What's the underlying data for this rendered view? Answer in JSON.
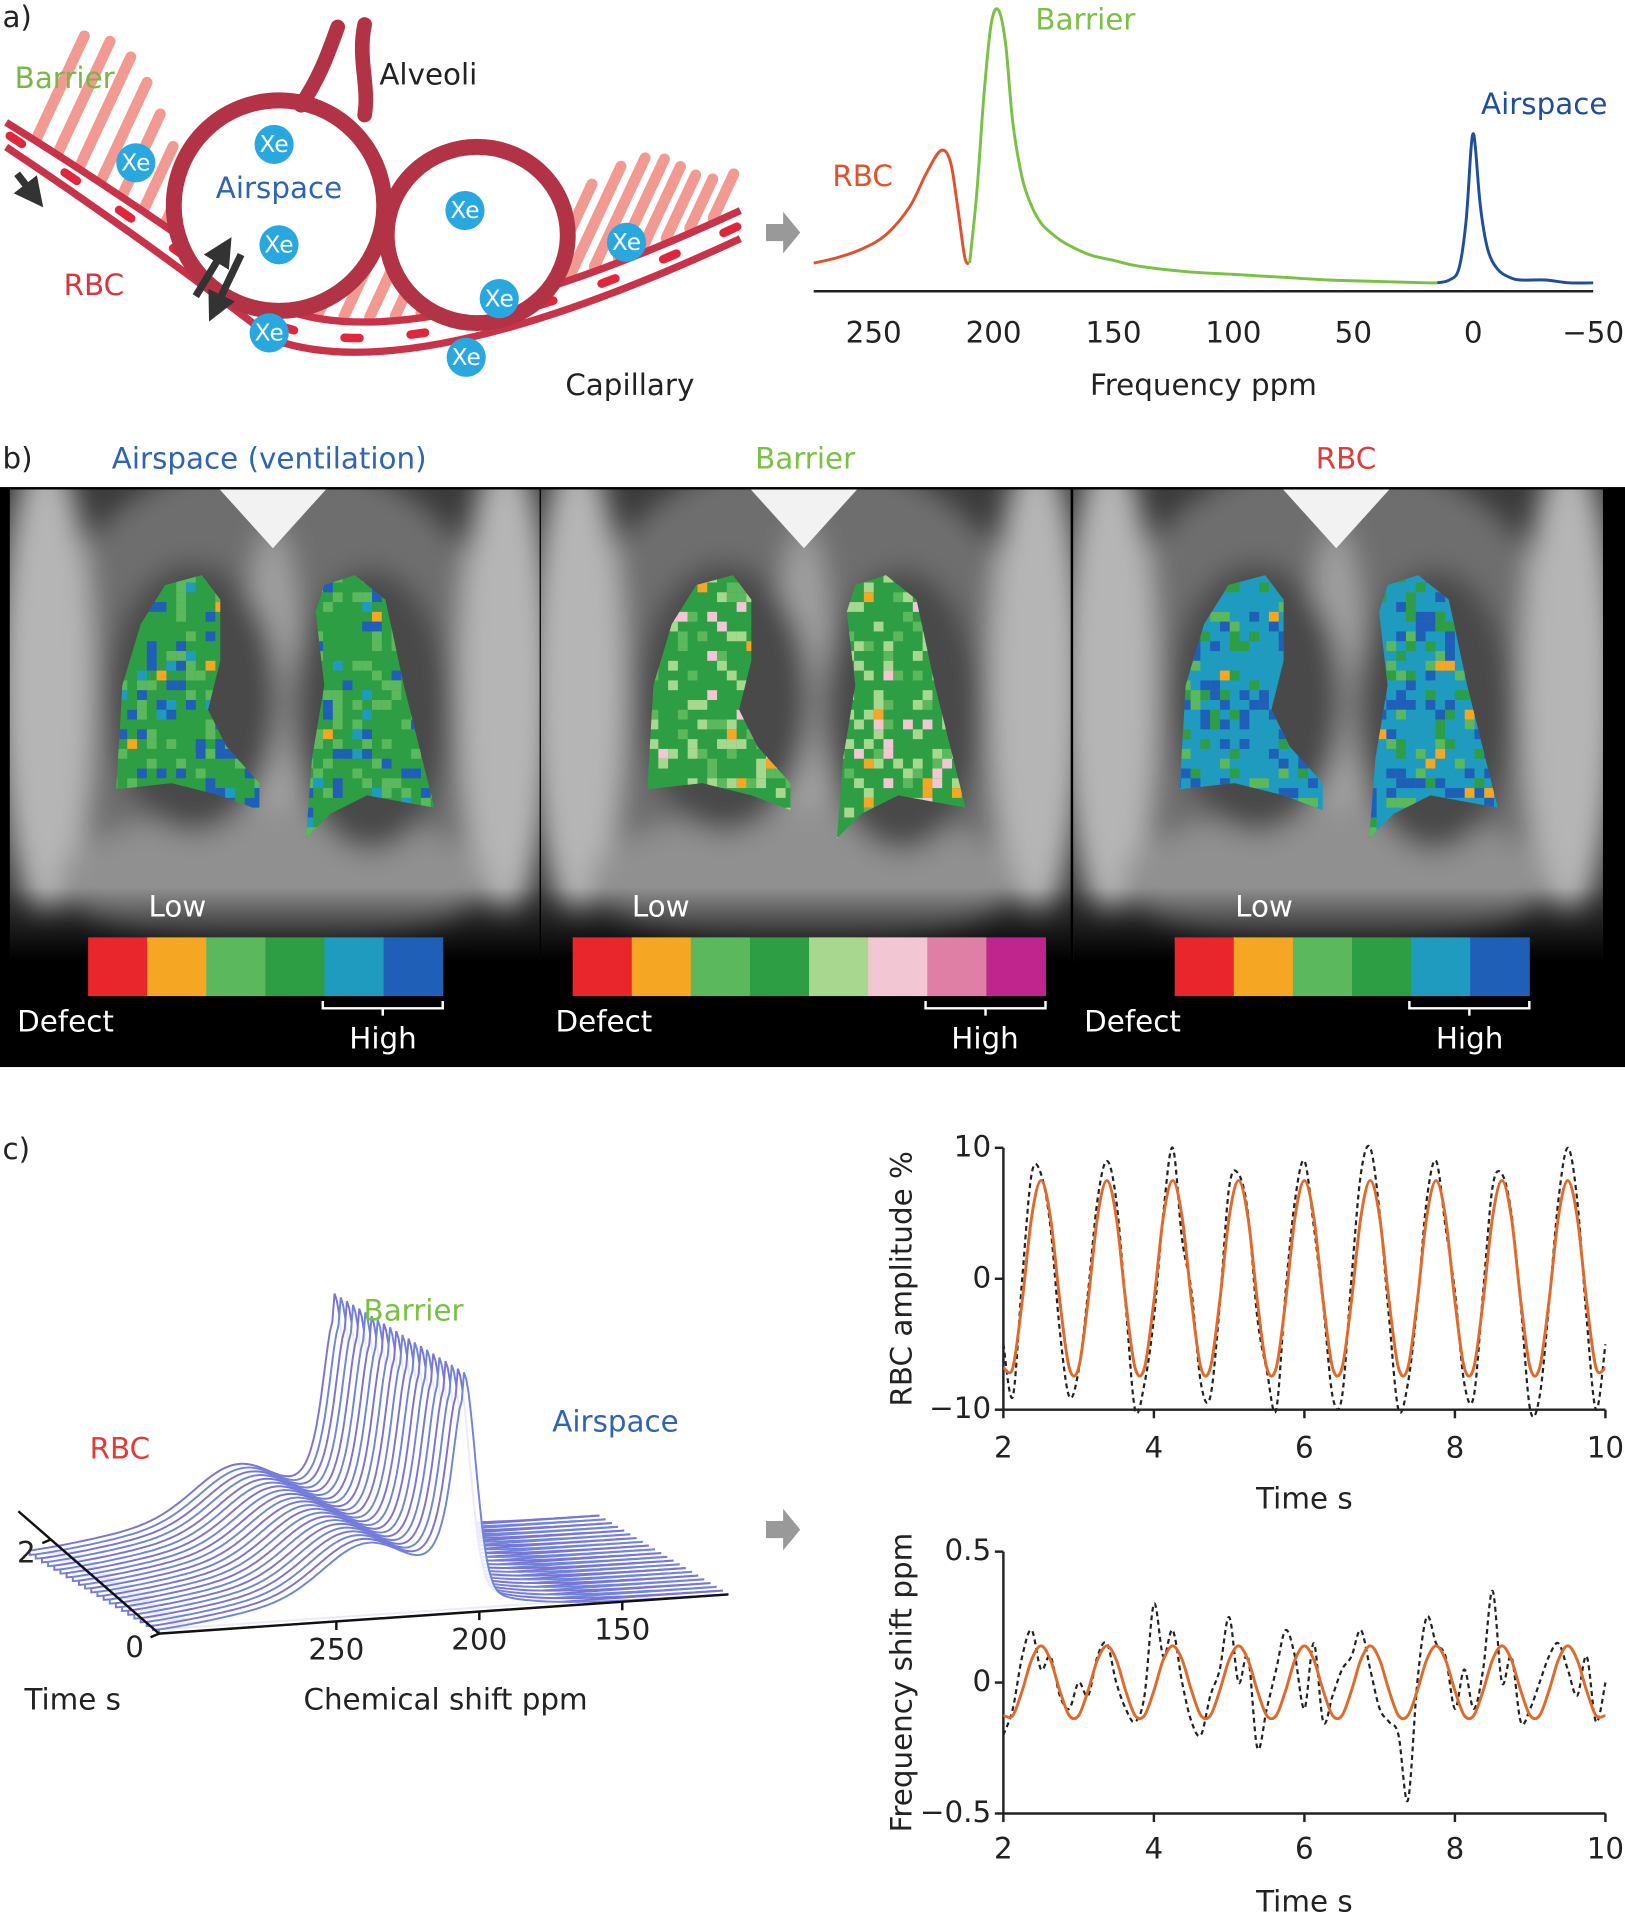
{
  "panel_labels": [
    "a)",
    "b)",
    "c)"
  ],
  "diagram": {
    "barrier": "Barrier",
    "alveoli": "Alveoli",
    "airspace": "Airspace",
    "rbc": "RBC",
    "capillary": "Capillary",
    "xe": "Xe"
  },
  "maps": [
    {
      "title": "Airspace (ventilation)",
      "title_color": "#2f63b5",
      "low": "Low",
      "defect": "Defect",
      "high": "High",
      "scale": [
        "#e8262b",
        "#f5a623",
        "#5cb85c",
        "#2e9e45",
        "#1f9bbf",
        "#1f5fb8"
      ]
    },
    {
      "title": "Barrier",
      "title_color": "#7ac143",
      "low": "Low",
      "defect": "Defect",
      "high": "High",
      "scale": [
        "#e8262b",
        "#f5a623",
        "#5cb85c",
        "#2e9e45",
        "#a8d890",
        "#f2c6d2",
        "#e07fa6",
        "#c0258e"
      ]
    },
    {
      "title": "RBC",
      "title_color": "#e03a3a",
      "low": "Low",
      "defect": "Defect",
      "high": "High",
      "scale": [
        "#e8262b",
        "#f5a623",
        "#5cb85c",
        "#2e9e45",
        "#1f9bbf",
        "#1f5fb8"
      ]
    }
  ],
  "waterfall": {
    "labels": [
      {
        "text": "Barrier",
        "color": "#7ac143"
      },
      {
        "text": "RBC",
        "color": "#e03a3a"
      },
      {
        "text": "Airspace",
        "color": "#2f63b5"
      }
    ],
    "xlim": [
      312,
      113
    ],
    "xticks": [
      250,
      200,
      150
    ],
    "xlabel": "Chemical shift ppm",
    "ylim": [
      0,
      2.6
    ],
    "yticks": [
      0,
      2
    ],
    "ylabel": "Time s"
  },
  "chart_data": [
    {
      "type": "line",
      "xlabel": "Frequency ppm",
      "xlim": [
        275,
        -50
      ],
      "xticks": [
        250,
        200,
        150,
        100,
        50,
        0,
        {
          "value": -50,
          "label": "−50"
        }
      ],
      "ylim": [
        0,
        1
      ],
      "series": [
        {
          "name": "RBC",
          "color": "#e0522b",
          "x": [
            275,
            265,
            255,
            245,
            235,
            228,
            222,
            218,
            215,
            212,
            210
          ],
          "values": [
            0.1,
            0.12,
            0.15,
            0.2,
            0.3,
            0.42,
            0.5,
            0.46,
            0.3,
            0.12,
            0.1
          ]
        },
        {
          "name": "Barrier",
          "color": "#7ac143",
          "x": [
            210,
            207,
            204,
            201,
            198,
            195,
            192,
            188,
            184,
            180,
            175,
            170,
            160,
            150,
            140,
            120,
            100,
            80,
            60,
            40,
            20,
            15
          ],
          "values": [
            0.1,
            0.35,
            0.7,
            0.95,
            1.0,
            0.88,
            0.6,
            0.4,
            0.3,
            0.24,
            0.2,
            0.17,
            0.13,
            0.11,
            0.09,
            0.07,
            0.06,
            0.05,
            0.04,
            0.035,
            0.03,
            0.03
          ]
        },
        {
          "name": "Airspace",
          "color": "#1f4e9c",
          "x": [
            15,
            10,
            6,
            3,
            1,
            0,
            -1,
            -3,
            -6,
            -10,
            -15,
            -20,
            -30,
            -40,
            -50
          ],
          "values": [
            0.03,
            0.04,
            0.08,
            0.25,
            0.5,
            0.56,
            0.5,
            0.3,
            0.15,
            0.08,
            0.05,
            0.04,
            0.04,
            0.03,
            0.03
          ]
        }
      ]
    },
    {
      "type": "line",
      "xlabel": "Time s",
      "ylabel": "RBC amplitude %",
      "xlim": [
        2,
        10
      ],
      "xticks": [
        2,
        4,
        6,
        8,
        10
      ],
      "ylim": [
        -10,
        10
      ],
      "yticks": [
        10,
        0,
        {
          "value": -10,
          "label": "−10"
        }
      ],
      "x": [
        2,
        2.125,
        2.25,
        2.375,
        2.5,
        2.625,
        2.75,
        2.875,
        3,
        3.125,
        3.25,
        3.375,
        3.5,
        3.625,
        3.75,
        3.875,
        4,
        4.125,
        4.25,
        4.375,
        4.5,
        4.625,
        4.75,
        4.875,
        5,
        5.125,
        5.25,
        5.375,
        5.5,
        5.625,
        5.75,
        5.875,
        6,
        6.125,
        6.25,
        6.375,
        6.5,
        6.625,
        6.75,
        6.875,
        7,
        7.125,
        7.25,
        7.375,
        7.5,
        7.625,
        7.75,
        7.875,
        8,
        8.125,
        8.25,
        8.375,
        8.5,
        8.625,
        8.75,
        8.875,
        9,
        9.125,
        9.25,
        9.375,
        9.5,
        9.625,
        9.75,
        9.875,
        10
      ],
      "series": [
        {
          "color": "#222222",
          "dashed": true,
          "values": [
            -5,
            -9,
            0,
            8,
            8,
            4,
            -4,
            -9,
            -7,
            -1,
            6,
            9,
            6,
            -2,
            -10,
            -8,
            -3,
            5,
            10,
            3,
            -1,
            -8,
            -9,
            -2,
            7,
            8,
            5,
            -3,
            -7,
            -10,
            -1,
            6,
            9,
            4,
            -2,
            -9,
            -9,
            0,
            8,
            10,
            5,
            -3,
            -10,
            -8,
            -2,
            6,
            9,
            4,
            -1,
            -8,
            -9,
            -1,
            7,
            8,
            5,
            -2,
            -10,
            -9,
            -2,
            6,
            10,
            6,
            -3,
            -10,
            -5
          ]
        },
        {
          "color": "#e06a2b",
          "dashed": false,
          "values": [
            -6.8,
            -6.8,
            -1.7,
            4.7,
            7.5,
            4.7,
            -1.7,
            -6.8,
            -6.8,
            -1.7,
            4.7,
            7.5,
            4.7,
            -1.7,
            -6.8,
            -6.8,
            -1.7,
            4.7,
            7.5,
            4.7,
            -1.7,
            -6.8,
            -6.8,
            -1.7,
            4.7,
            7.5,
            4.7,
            -1.7,
            -6.8,
            -6.8,
            -1.7,
            4.7,
            7.5,
            4.7,
            -1.7,
            -6.8,
            -6.8,
            -1.7,
            4.7,
            7.5,
            4.7,
            -1.7,
            -6.8,
            -6.8,
            -1.7,
            4.7,
            7.5,
            4.7,
            -1.7,
            -6.8,
            -6.8,
            -1.7,
            4.7,
            7.5,
            4.7,
            -1.7,
            -6.8,
            -6.8,
            -1.7,
            4.7,
            7.5,
            4.7,
            -1.7,
            -6.8,
            -6.8
          ]
        }
      ]
    },
    {
      "type": "line",
      "xlabel": "Time s",
      "ylabel": "Frequency shift ppm",
      "xlim": [
        2,
        10
      ],
      "xticks": [
        2,
        4,
        6,
        8,
        10
      ],
      "ylim": [
        -0.5,
        0.5
      ],
      "yticks": [
        0.5,
        0,
        {
          "value": -0.5,
          "label": "−0.5"
        }
      ],
      "x": [
        2,
        2.125,
        2.25,
        2.375,
        2.5,
        2.625,
        2.75,
        2.875,
        3,
        3.125,
        3.25,
        3.375,
        3.5,
        3.625,
        3.75,
        3.875,
        4,
        4.125,
        4.25,
        4.375,
        4.5,
        4.625,
        4.75,
        4.875,
        5,
        5.125,
        5.25,
        5.375,
        5.5,
        5.625,
        5.75,
        5.875,
        6,
        6.125,
        6.25,
        6.375,
        6.5,
        6.625,
        6.75,
        6.875,
        7,
        7.125,
        7.25,
        7.375,
        7.5,
        7.625,
        7.75,
        7.875,
        8,
        8.125,
        8.25,
        8.375,
        8.5,
        8.625,
        8.75,
        8.875,
        9,
        9.125,
        9.25,
        9.375,
        9.5,
        9.625,
        9.75,
        9.875,
        10
      ],
      "series": [
        {
          "color": "#222222",
          "dashed": true,
          "values": [
            -0.2,
            -0.1,
            0.1,
            0.2,
            0.05,
            0.1,
            -0.05,
            -0.1,
            0,
            -0.05,
            0.1,
            0.15,
            0,
            -0.1,
            -0.15,
            -0.05,
            0.3,
            0.1,
            0.2,
            0,
            -0.15,
            -0.2,
            -0.05,
            0.05,
            0.25,
            0,
            0.1,
            -0.25,
            -0.1,
            0.05,
            0.2,
            0.1,
            -0.1,
            0.15,
            -0.15,
            -0.05,
            0.05,
            0.1,
            0.2,
            0.05,
            -0.1,
            -0.15,
            -0.2,
            -0.45,
            0,
            0.25,
            0.15,
            0.1,
            -0.1,
            0.05,
            -0.1,
            0.05,
            0.35,
            0,
            0.1,
            -0.15,
            -0.1,
            0,
            0.1,
            0.15,
            0.05,
            -0.05,
            0.1,
            -0.15,
            0
          ]
        },
        {
          "color": "#e06a2b",
          "dashed": false,
          "values": [
            -0.126,
            -0.126,
            -0.031,
            0.087,
            0.14,
            0.087,
            -0.031,
            -0.126,
            -0.126,
            -0.031,
            0.087,
            0.14,
            0.087,
            -0.031,
            -0.126,
            -0.126,
            -0.031,
            0.087,
            0.14,
            0.087,
            -0.031,
            -0.126,
            -0.126,
            -0.031,
            0.087,
            0.14,
            0.087,
            -0.031,
            -0.126,
            -0.126,
            -0.031,
            0.087,
            0.14,
            0.087,
            -0.031,
            -0.126,
            -0.126,
            -0.031,
            0.087,
            0.14,
            0.087,
            -0.031,
            -0.126,
            -0.126,
            -0.031,
            0.087,
            0.14,
            0.087,
            -0.031,
            -0.126,
            -0.126,
            -0.031,
            0.087,
            0.14,
            0.087,
            -0.031,
            -0.126,
            -0.126,
            -0.031,
            0.087,
            0.14,
            0.087,
            -0.031,
            -0.126,
            -0.126
          ]
        }
      ]
    }
  ]
}
